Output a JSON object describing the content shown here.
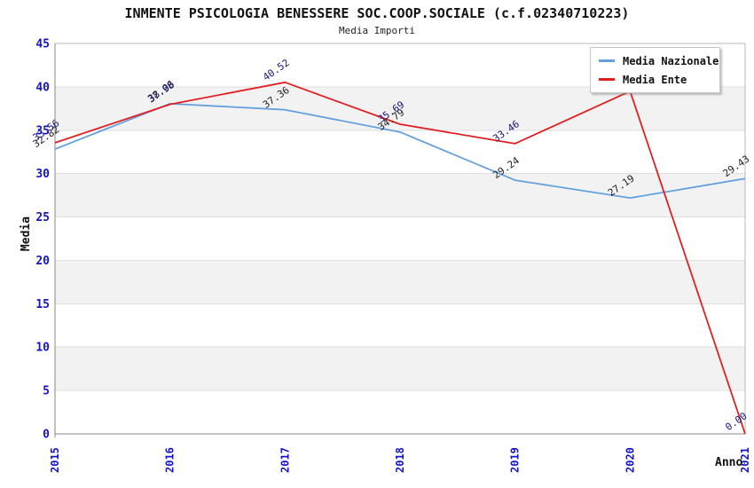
{
  "title": "INMENTE PSICOLOGIA BENESSERE SOC.COOP.SOCIALE (c.f.02340710223)",
  "subtitle": "Media Importi",
  "colors": {
    "axis_tick": "#1414CC",
    "band_gray": "#F2F2F2",
    "grid_line": "#DEDEDE",
    "plot_border": "#B8B8B8",
    "axis_line": "#8A8A8A"
  },
  "axes": {
    "y_title": "Media",
    "x_title": "Anno",
    "y_ticks": [
      45,
      40,
      35,
      30,
      25,
      20,
      15,
      10,
      5,
      0
    ],
    "x_ticks": [
      "2015",
      "2016",
      "2017",
      "2018",
      "2019",
      "2020",
      "2021"
    ]
  },
  "legend": {
    "items": [
      {
        "label": "Media Nazionale",
        "color": "#64A0DC"
      },
      {
        "label": "Media Ente",
        "color": "#E02020"
      }
    ]
  },
  "chart_data": {
    "type": "line",
    "title": "Media Importi",
    "xlabel": "Anno",
    "ylabel": "Media",
    "x": [
      "2015",
      "2016",
      "2017",
      "2018",
      "2019",
      "2020",
      "2021"
    ],
    "ylim": [
      0,
      45
    ],
    "grid": "horizontal-bands",
    "legend_position": "top-right",
    "series": [
      {
        "name": "Media Nazionale",
        "color": "#64A0DC",
        "label_color": "#222222",
        "values": [
          32.82,
          38.06,
          37.36,
          34.79,
          29.24,
          27.19,
          29.43
        ],
        "labels": [
          "32.82",
          "38.06",
          "37.36",
          "34.79",
          "29.24",
          "27.19",
          "29.43"
        ]
      },
      {
        "name": "Media Ente",
        "color": "#E02020",
        "label_color": "#16167E",
        "values": [
          33.56,
          37.98,
          40.52,
          35.69,
          33.46,
          39.5,
          0.0
        ],
        "labels": [
          "33.56",
          "37.98",
          "40.52",
          "35.69",
          "33.46",
          "",
          "0.00"
        ]
      }
    ]
  }
}
